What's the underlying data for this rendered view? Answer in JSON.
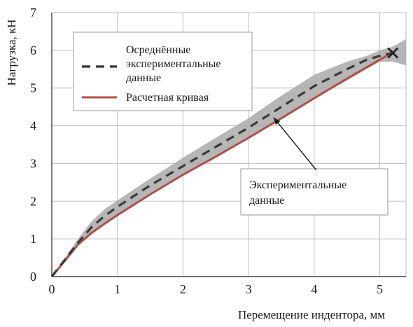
{
  "chart_data": {
    "type": "line",
    "xlabel": "Перемещение индентора, мм",
    "ylabel": "Нагрузка, кН",
    "xlim": [
      0,
      5.4
    ],
    "ylim": [
      0,
      7
    ],
    "xticks": [
      0,
      1,
      2,
      3,
      4,
      5
    ],
    "yticks": [
      0,
      1,
      2,
      3,
      4,
      5,
      6,
      7
    ],
    "grid": true,
    "legend_position": "top-left",
    "series": [
      {
        "name": "Осреднённые экспериментальные данные",
        "style": "dashed",
        "color": "#3a3a3a",
        "x": [
          0,
          0.2,
          0.4,
          0.6,
          0.8,
          1.0,
          1.5,
          2.0,
          2.5,
          3.0,
          3.5,
          4.0,
          4.5,
          4.8,
          5.0,
          5.2
        ],
        "y": [
          0,
          0.45,
          0.9,
          1.3,
          1.6,
          1.85,
          2.42,
          2.93,
          3.44,
          3.95,
          4.5,
          5.05,
          5.5,
          5.75,
          5.85,
          5.93
        ]
      },
      {
        "name": "Расчетная кривая",
        "style": "solid",
        "color": "#b0504a",
        "x": [
          0,
          0.2,
          0.4,
          0.6,
          0.8,
          1.0,
          1.5,
          2.0,
          2.5,
          3.0,
          3.5,
          4.0,
          4.5,
          5.0,
          5.2
        ],
        "y": [
          0,
          0.42,
          0.85,
          1.15,
          1.4,
          1.63,
          2.18,
          2.7,
          3.18,
          3.68,
          4.2,
          4.73,
          5.25,
          5.75,
          5.95
        ]
      }
    ],
    "band": {
      "color": "#a9a9a9",
      "x": [
        0,
        0.2,
        0.4,
        0.6,
        0.8,
        1.0,
        1.5,
        2.0,
        2.5,
        3.0,
        3.5,
        4.0,
        4.5,
        4.8,
        5.0,
        5.2,
        5.4
      ],
      "upper": [
        0,
        0.5,
        1.0,
        1.45,
        1.78,
        2.02,
        2.6,
        3.15,
        3.68,
        4.2,
        4.8,
        5.35,
        5.7,
        5.85,
        6.0,
        6.1,
        6.3
      ],
      "lower": [
        0,
        0.4,
        0.82,
        1.12,
        1.36,
        1.6,
        2.15,
        2.68,
        3.16,
        3.66,
        4.18,
        4.72,
        5.2,
        5.5,
        5.7,
        5.7,
        5.6
      ]
    },
    "end_marker": {
      "x": 5.2,
      "y": 5.93,
      "symbol": "x"
    },
    "annotation": {
      "lines": [
        "Экспериментальные",
        "данные"
      ],
      "target": {
        "x": 3.38,
        "y": 4.22
      }
    },
    "legend_entries": [
      {
        "lines": [
          "Осреднённые",
          "экспериментальные",
          "данные"
        ],
        "style": "dashed"
      },
      {
        "lines": [
          "Расчетная кривая"
        ],
        "style": "solid"
      }
    ]
  }
}
